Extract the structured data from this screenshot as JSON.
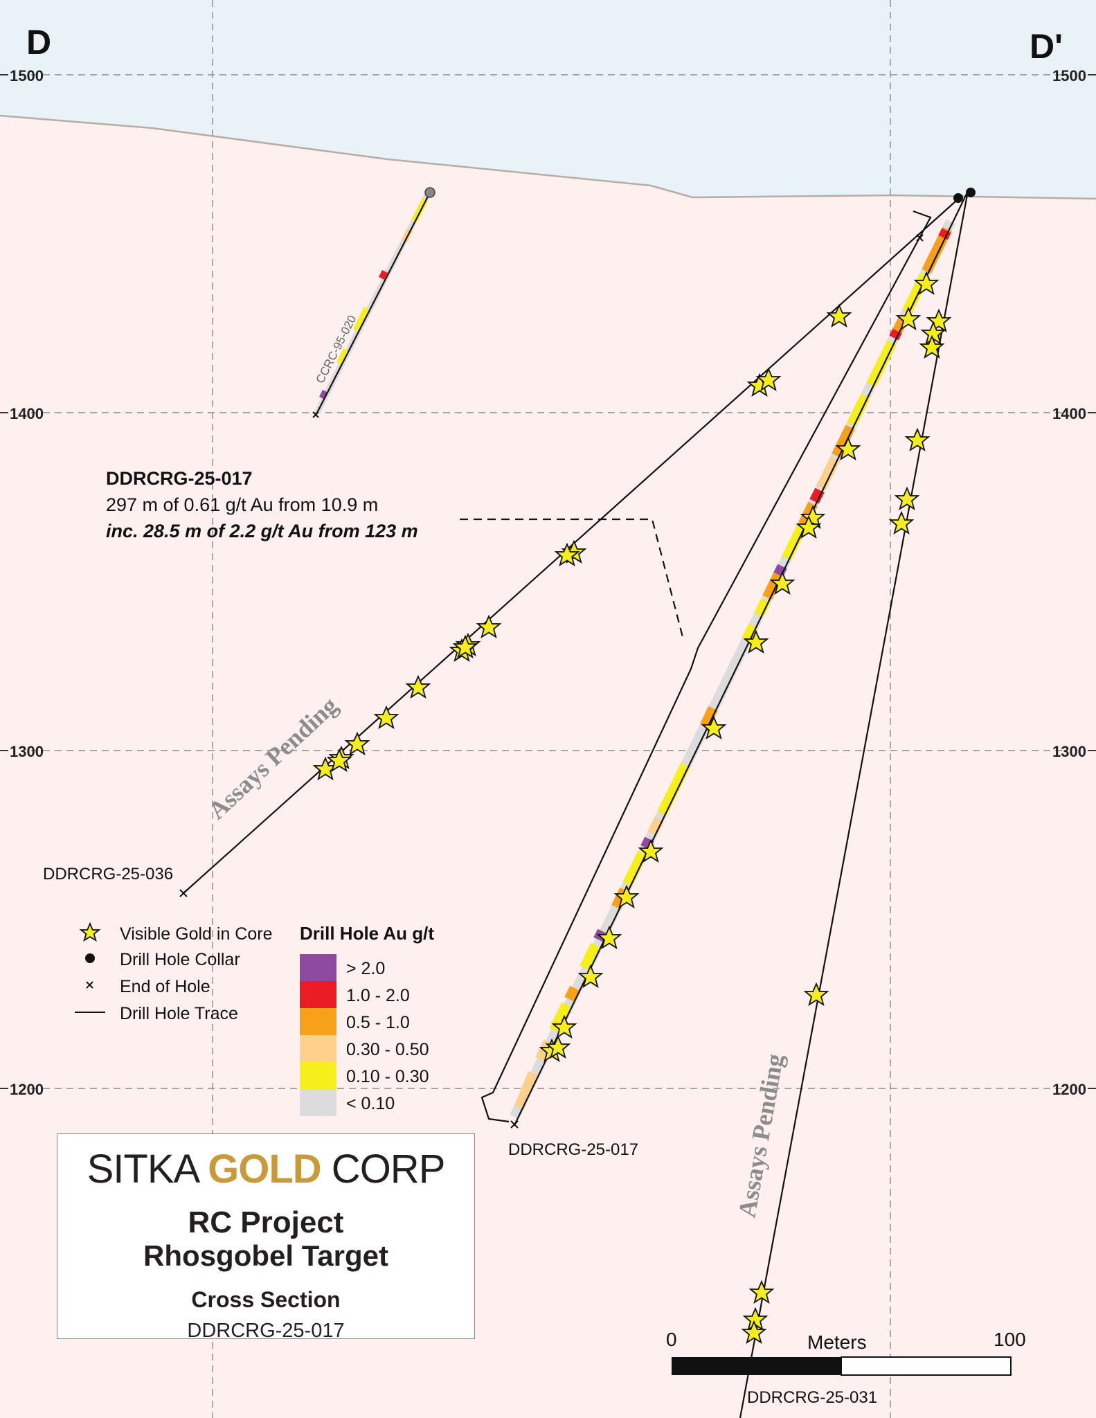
{
  "sections": {
    "left": "D",
    "right": "D'"
  },
  "elevations": [
    "1500",
    "1400",
    "1300",
    "1200"
  ],
  "holes": {
    "h036": "DDRCRG-25-036",
    "h017": "DDRCRG-25-017",
    "h031": "DDRCRG-25-031",
    "h95": "CCRC-95-020"
  },
  "annotation": {
    "title": "DDRCRG-25-017",
    "line1": "297 m of 0.61 g/t Au from 10.9 m",
    "line2": "inc. 28.5 m of 2.2 g/t Au from 123 m"
  },
  "pending_label": "Assays Pending",
  "legend": {
    "symbols": [
      {
        "icon": "star-icon",
        "label": "Visible Gold in Core"
      },
      {
        "icon": "collar-dot-icon",
        "label": "Drill Hole Collar"
      },
      {
        "icon": "end-of-hole-icon",
        "label": "End of Hole"
      },
      {
        "icon": "trace-line-icon",
        "label": "Drill Hole Trace"
      }
    ],
    "grade_title": "Drill Hole Au g/t",
    "grades": [
      {
        "label": "> 2.0",
        "color": "#8e4a9e"
      },
      {
        "label": "1.0 - 2.0",
        "color": "#ec1c24"
      },
      {
        "label": "0.5 - 1.0",
        "color": "#f7a11a"
      },
      {
        "label": "0.30 - 0.50",
        "color": "#fdd08b"
      },
      {
        "label": "0.10 - 0.30",
        "color": "#f7ef1a"
      },
      {
        "label": "< 0.10",
        "color": "#dcdcdc"
      }
    ]
  },
  "title_box": {
    "brand_a": "SITKA ",
    "brand_gold": "GOLD",
    "brand_b": " CORP",
    "project": "RC Project",
    "target": "Rhosgobel Target",
    "section": "Cross Section",
    "hole": "DDRCRG-25-017"
  },
  "scale": {
    "start": "0",
    "unit": "Meters",
    "end": "100"
  },
  "colors": {
    "sky": "#e9f3f7",
    "ground": "#fdf0ee",
    "star": "#f5ed1c"
  }
}
